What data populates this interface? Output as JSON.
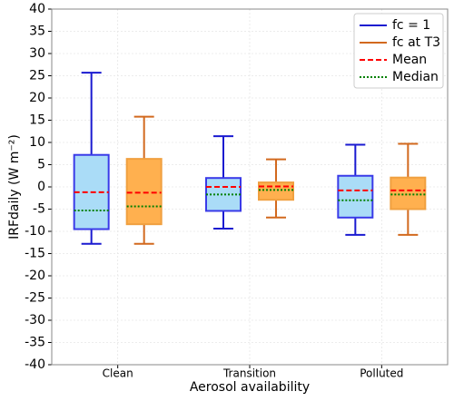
{
  "chart_data": {
    "type": "box",
    "xlabel": "Aerosol availability",
    "ylabel": "IRFdaily (W m⁻²)",
    "categories": [
      "Clean",
      "Transition",
      "Polluted"
    ],
    "ylim": [
      -40,
      40
    ],
    "yticks": [
      -40,
      -35,
      -30,
      -25,
      -20,
      -15,
      -10,
      -5,
      0,
      5,
      10,
      15,
      20,
      25,
      30,
      35,
      40
    ],
    "grid": true,
    "legend": "upper right",
    "mean_label": "Mean",
    "mean_color": "#ff0000",
    "median_label": "Median",
    "median_color": "#008000",
    "series": [
      {
        "name": "fc = 1",
        "color": "#aadcf7",
        "edge_color": "#3a3ae8",
        "whisker_color": "#1a1ad0",
        "min": [
          -12.8,
          -9.4,
          -10.8
        ],
        "q1": [
          -9.5,
          -5.4,
          -6.9
        ],
        "median": [
          -5.3,
          -1.7,
          -3.0
        ],
        "q3": [
          7.2,
          2.0,
          2.5
        ],
        "max": [
          25.7,
          11.4,
          9.5
        ],
        "mean": [
          -1.2,
          0.0,
          -0.8
        ]
      },
      {
        "name": "fc at T3",
        "color": "#ffb04f",
        "edge_color": "#f0a040",
        "whisker_color": "#d2691e",
        "min": [
          -12.8,
          -6.9,
          -10.8
        ],
        "q1": [
          -8.4,
          -2.9,
          -5.0
        ],
        "median": [
          -4.4,
          -0.7,
          -1.7
        ],
        "q3": [
          6.3,
          1.0,
          2.1
        ],
        "max": [
          15.8,
          6.2,
          9.7
        ],
        "mean": [
          -1.3,
          0.1,
          -0.8
        ]
      }
    ]
  }
}
